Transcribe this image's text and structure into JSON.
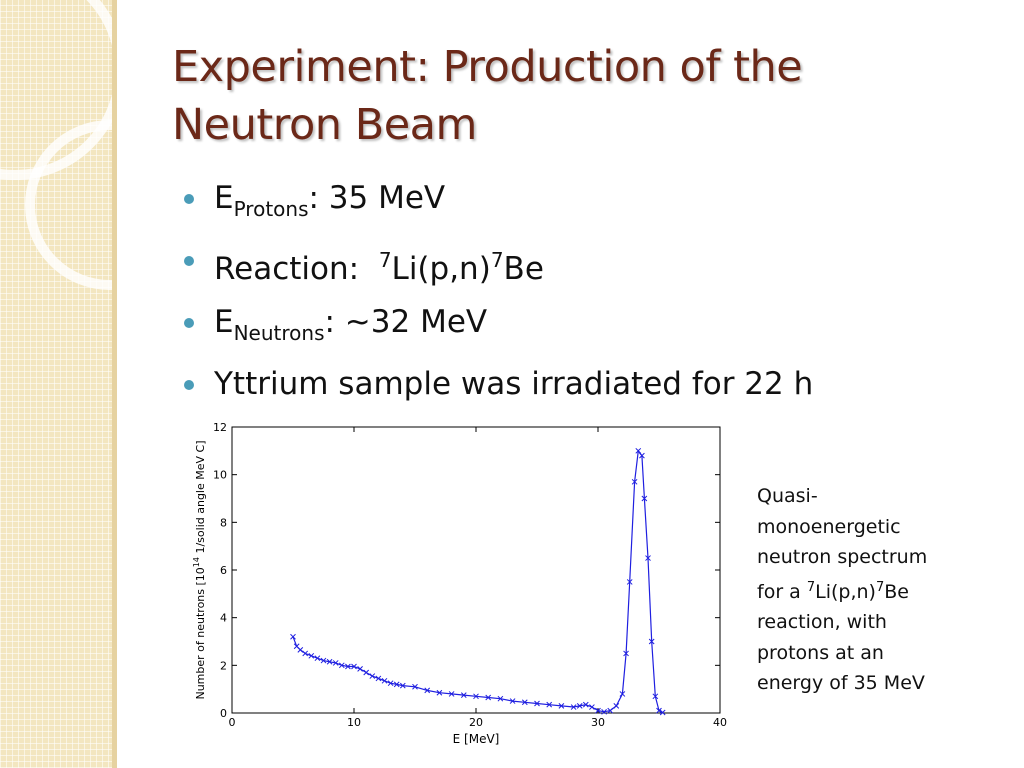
{
  "slide": {
    "title_line1": "Experiment: Production of the",
    "title_line2": "Neutron Beam",
    "bullets": [
      {
        "main": "E",
        "sub": "Protons",
        "rest": ": 35 MeV"
      },
      {
        "label": "Reaction:",
        "sup1": "7",
        "mid": "Li(p,n)",
        "sup2": "7",
        "end": "Be"
      },
      {
        "main": "E",
        "sub": "Neutrons",
        "rest": ": ~32 MeV"
      },
      {
        "text": "Yttrium sample was irradiated for 22 h"
      }
    ],
    "caption": {
      "line1": "Quasi-",
      "line2": "monoenergetic",
      "line3": "neutron spectrum",
      "line4_pre": "for a ",
      "line4_sup1": "7",
      "line4_mid": "Li(p,n)",
      "line4_sup2": "7",
      "line4_end": "Be",
      "line5": "reaction, with",
      "line6": "protons at an",
      "line7": "energy of 35 MeV"
    }
  },
  "colors": {
    "title": "#6b2818",
    "bullet_dot": "#4a9cb8",
    "series": "#1f1fe0"
  },
  "chart_data": {
    "type": "line",
    "xlabel": "E [MeV]",
    "ylabel_pre": "Number of neutrons [10",
    "ylabel_sup": "14",
    "ylabel_post": " 1/solid angle MeV C]",
    "xlim": [
      0,
      40
    ],
    "ylim": [
      0,
      12
    ],
    "xticks": [
      0,
      10,
      20,
      30,
      40
    ],
    "yticks": [
      0,
      2,
      4,
      6,
      8,
      10,
      12
    ],
    "grid": false,
    "marker": "x",
    "series": [
      {
        "x": [
          5,
          5.3,
          5.6,
          6,
          6.5,
          7,
          7.5,
          8,
          8.5,
          9,
          9.5,
          10,
          10.5,
          11,
          11.5,
          12,
          12.5,
          13,
          13.5,
          14,
          15,
          16,
          17,
          18,
          19,
          20,
          21,
          22,
          23,
          24,
          25,
          26,
          27,
          28,
          28.5,
          29,
          29.5,
          30,
          30.5,
          31,
          31.5,
          32,
          32.3,
          32.6,
          33,
          33.3,
          33.6,
          33.8,
          34.1,
          34.4,
          34.7,
          35,
          35.3
        ],
        "y": [
          3.2,
          2.8,
          2.65,
          2.5,
          2.4,
          2.3,
          2.2,
          2.15,
          2.1,
          2.0,
          1.95,
          1.95,
          1.85,
          1.7,
          1.55,
          1.45,
          1.35,
          1.25,
          1.2,
          1.15,
          1.1,
          0.95,
          0.85,
          0.8,
          0.75,
          0.7,
          0.65,
          0.6,
          0.5,
          0.45,
          0.4,
          0.35,
          0.3,
          0.25,
          0.3,
          0.35,
          0.25,
          0.1,
          0.05,
          0.1,
          0.3,
          0.8,
          2.5,
          5.5,
          9.7,
          11.0,
          10.8,
          9.0,
          6.5,
          3.0,
          0.7,
          0.1,
          0.02
        ]
      }
    ]
  }
}
